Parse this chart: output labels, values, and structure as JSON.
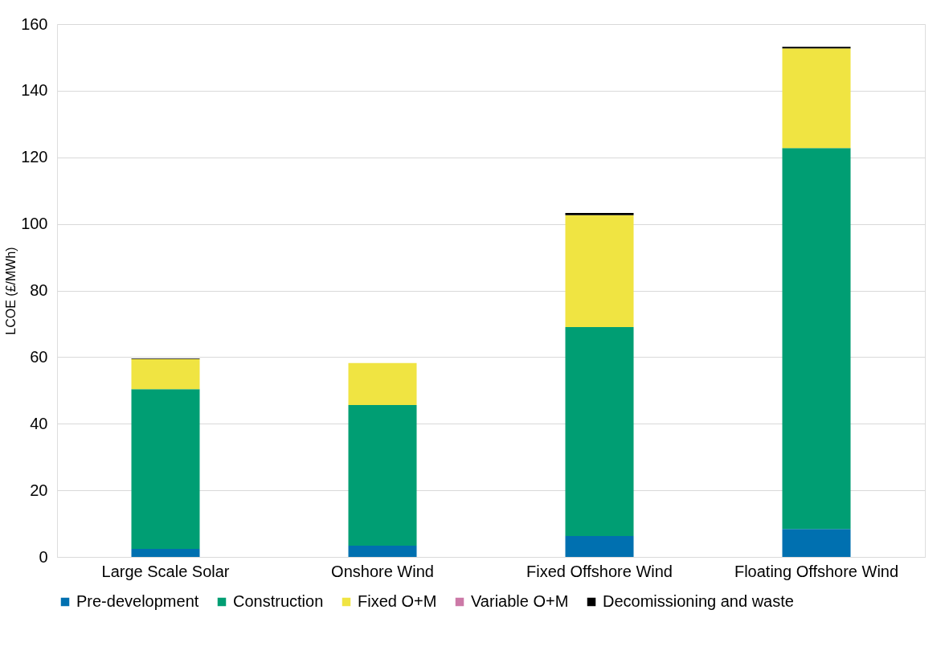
{
  "chart_data": {
    "type": "bar",
    "stacked": true,
    "ylabel": "LCOE (£/MWh)",
    "categories": [
      "Large Scale Solar",
      "Onshore Wind",
      "Fixed Offshore Wind",
      "Floating Offshore Wind"
    ],
    "series": [
      {
        "name": "Pre-development",
        "color": "#0070b0",
        "values": [
          2.4,
          3.4,
          6.3,
          8.4
        ]
      },
      {
        "name": "Construction",
        "color": "#009e73",
        "values": [
          48.0,
          42.2,
          62.7,
          114.4
        ]
      },
      {
        "name": "Fixed O+M",
        "color": "#f0e442",
        "values": [
          9.0,
          12.6,
          33.6,
          29.9
        ]
      },
      {
        "name": "Variable O+M",
        "color": "#cc79a7",
        "values": [
          0,
          0,
          0,
          0
        ]
      },
      {
        "name": "Decomissioning and waste",
        "color": "#000000",
        "values": [
          0.2,
          0,
          0.7,
          0.5
        ]
      }
    ],
    "ylim": [
      0,
      160
    ],
    "yticks": [
      0,
      20,
      40,
      60,
      80,
      100,
      120,
      140,
      160
    ],
    "grid": "y",
    "legend": "bottom"
  }
}
